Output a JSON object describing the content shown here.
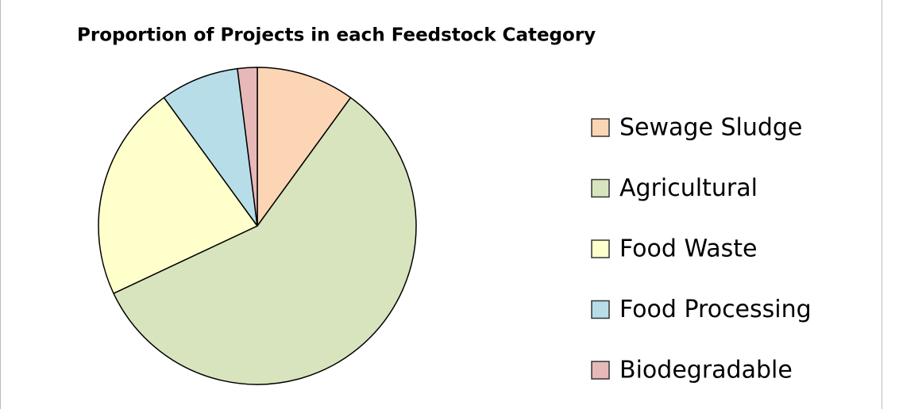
{
  "chart_data": {
    "type": "pie",
    "title": "Proportion of Projects in each Feedstock Category",
    "categories": [
      "Sewage Sludge",
      "Agricultural",
      "Food Waste",
      "Food Processing",
      "Biodegradable"
    ],
    "values": [
      10,
      58,
      22,
      8,
      2
    ],
    "colors": [
      "#fcd5b5",
      "#d7e4bd",
      "#ffffcc",
      "#b7dee8",
      "#e6b9b8"
    ],
    "legend": "right"
  }
}
